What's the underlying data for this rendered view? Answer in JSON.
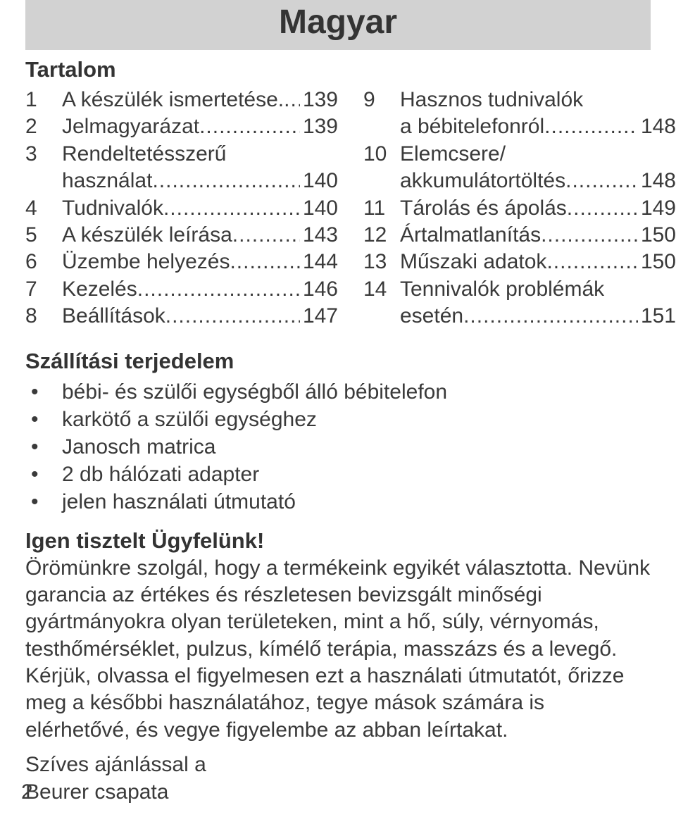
{
  "title": "Magyar",
  "toc_heading": "Tartalom",
  "toc_left": [
    {
      "n": "1",
      "lines": [
        "A készülék ismertetése."
      ],
      "page": "139"
    },
    {
      "n": "2",
      "lines": [
        "Jelmagyarázat"
      ],
      "page": "139"
    },
    {
      "n": "3",
      "lines": [
        "Rendeltetésszerű",
        "használat"
      ],
      "page": "140"
    },
    {
      "n": "4",
      "lines": [
        "Tudnivalók"
      ],
      "page": "140"
    },
    {
      "n": "5",
      "lines": [
        "A készülék leírása"
      ],
      "page": "143"
    },
    {
      "n": "6",
      "lines": [
        "Üzembe helyezés"
      ],
      "page": "144"
    },
    {
      "n": "7",
      "lines": [
        "Kezelés"
      ],
      "page": "146"
    },
    {
      "n": "8",
      "lines": [
        "Beállítások"
      ],
      "page": "147"
    }
  ],
  "toc_right": [
    {
      "n": "9",
      "lines": [
        "Hasznos tudnivalók",
        "a bébitelefonról"
      ],
      "page": "148"
    },
    {
      "n": "10",
      "lines": [
        "Elemcsere/",
        "akkumulátortöltés"
      ],
      "page": "148"
    },
    {
      "n": "11",
      "lines": [
        "Tárolás és ápolás"
      ],
      "page": "149"
    },
    {
      "n": "12",
      "lines": [
        "Ártalmatlanítás"
      ],
      "page": "150"
    },
    {
      "n": "13",
      "lines": [
        "Műszaki adatok"
      ],
      "page": "150"
    },
    {
      "n": "14",
      "lines": [
        "Tennivalók problémák",
        "esetén"
      ],
      "page": "151"
    }
  ],
  "scope_heading": "Szállítási terjedelem",
  "bullets": [
    "bébi- és szülői egységből álló bébitelefon",
    "karkötő a szülői egységhez",
    "Janosch matrica",
    "2 db hálózati adapter",
    "jelen használati útmutató"
  ],
  "dear_heading": "Igen tisztelt Ügyfelünk!",
  "body_paragraph": "Örömünkre szolgál, hogy a termékeink egyikét választotta. Nevünk garancia az értékes és részletesen bevizsgált minőségi gyártmányokra olyan területeken, mint a hő, súly, vérnyomás, testhőmérséklet, pulzus, kímélő terápia, masszázs és a levegő. Kérjük, olvassa el figyelmesen ezt a használati útmutatót, őrizze meg a későbbi használatához, tegye mások számára is elérhetővé, és vegye figyelembe az abban leírtakat.",
  "signoff_line1": "Szíves ajánlással a",
  "signoff_line2": "Beurer csapata",
  "page_number": "2",
  "colors": {
    "title_band_bg": "#d2d2d2",
    "text": "#3a3a3a",
    "page_bg": "#ffffff"
  },
  "typography": {
    "title_fontsize_pt": 36,
    "heading_fontsize_pt": 23,
    "body_fontsize_pt": 22,
    "font_family": "Arial / Helvetica"
  }
}
